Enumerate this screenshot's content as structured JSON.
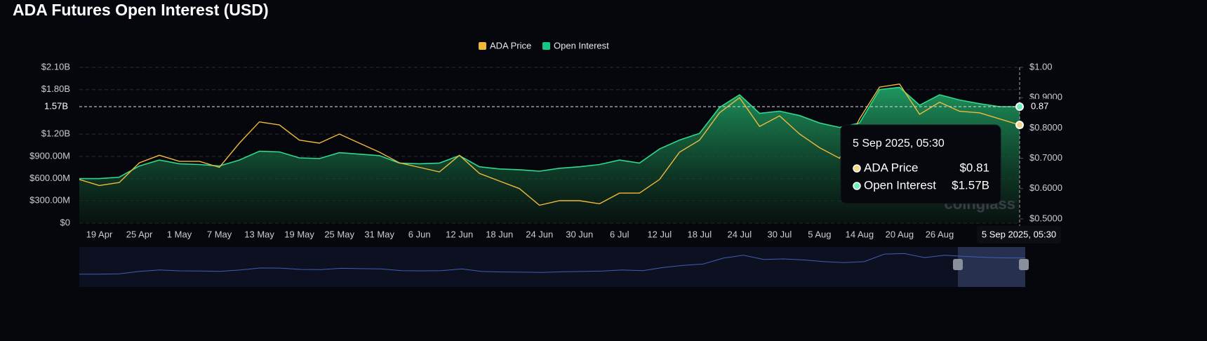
{
  "chart_data": {
    "type": "line-area",
    "title": "ADA Futures Open Interest (USD)",
    "categories": [
      null,
      "19 Apr",
      null,
      "25 Apr",
      null,
      "1 May",
      null,
      "7 May",
      null,
      "13 May",
      null,
      "19 May",
      null,
      "25 May",
      null,
      "31 May",
      null,
      "6 Jun",
      null,
      "12 Jun",
      null,
      "18 Jun",
      null,
      "24 Jun",
      null,
      "30 Jun",
      null,
      "6 Jul",
      null,
      "12 Jul",
      null,
      "18 Jul",
      null,
      "24 Jul",
      null,
      "30 Jul",
      null,
      "5 Aug",
      null,
      "14 Aug",
      null,
      "20 Aug",
      null,
      "26 Aug",
      null,
      null,
      null,
      "5 Sep 2025, 05:30"
    ],
    "series": [
      {
        "name": "ADA Price",
        "color": "#f0b93a",
        "axis": "y2",
        "values": [
          0.63,
          0.61,
          0.62,
          0.685,
          0.71,
          0.69,
          0.69,
          0.67,
          0.75,
          0.82,
          0.81,
          0.76,
          0.75,
          0.78,
          0.75,
          0.72,
          0.685,
          0.67,
          0.655,
          0.71,
          0.65,
          0.625,
          0.6,
          0.545,
          0.56,
          0.56,
          0.55,
          0.585,
          0.585,
          0.63,
          0.72,
          0.76,
          0.85,
          0.9,
          0.805,
          0.84,
          0.78,
          0.735,
          0.7,
          0.83,
          0.935,
          0.945,
          0.845,
          0.885,
          0.855,
          0.85,
          0.83,
          0.81
        ]
      },
      {
        "name": "Open Interest",
        "color": "#16c784",
        "values": [
          600000000,
          600000000,
          620000000,
          770000000,
          850000000,
          800000000,
          790000000,
          770000000,
          850000000,
          970000000,
          960000000,
          880000000,
          870000000,
          950000000,
          930000000,
          910000000,
          810000000,
          800000000,
          810000000,
          910000000,
          760000000,
          730000000,
          720000000,
          700000000,
          740000000,
          760000000,
          790000000,
          850000000,
          810000000,
          1000000000,
          1120000000,
          1210000000,
          1560000000,
          1730000000,
          1480000000,
          1510000000,
          1450000000,
          1350000000,
          1290000000,
          1350000000,
          1800000000,
          1830000000,
          1590000000,
          1730000000,
          1660000000,
          1610000000,
          1570000000,
          1570000000
        ]
      }
    ],
    "ylim": [
      0,
      2100000000
    ],
    "yticks": [
      {
        "value": 0,
        "label": "$0"
      },
      {
        "value": 300000000,
        "label": "$300.00M"
      },
      {
        "value": 600000000,
        "label": "$600.00M"
      },
      {
        "value": 900000000,
        "label": "$900.00M"
      },
      {
        "value": 1200000000,
        "label": "$1.20B"
      },
      {
        "value": 1800000000,
        "label": "$1.80B"
      },
      {
        "value": 2100000000,
        "label": "$2.10B"
      }
    ],
    "y2lim": [
      0.486,
      1.0
    ],
    "y2ticks": [
      {
        "value": 0.5,
        "label": "$0.5000"
      },
      {
        "value": 0.6,
        "label": "$0.6000"
      },
      {
        "value": 0.7,
        "label": "$0.7000"
      },
      {
        "value": 0.8,
        "label": "$0.8000"
      },
      {
        "value": 0.9,
        "label": "$0.9000"
      },
      {
        "value": 1.0,
        "label": "$1.00"
      }
    ],
    "grid": true,
    "legend": "top",
    "crosshair": {
      "y": {
        "value": 1570000000,
        "label": "1.57B"
      },
      "y2": {
        "value": 0.87,
        "label": "0.87"
      }
    },
    "tooltip": [
      {
        "value": 0.81,
        "label": "$0.81"
      },
      {
        "value": 1570000000,
        "label": "$1.57B"
      }
    ],
    "watermark": "coinglass"
  }
}
